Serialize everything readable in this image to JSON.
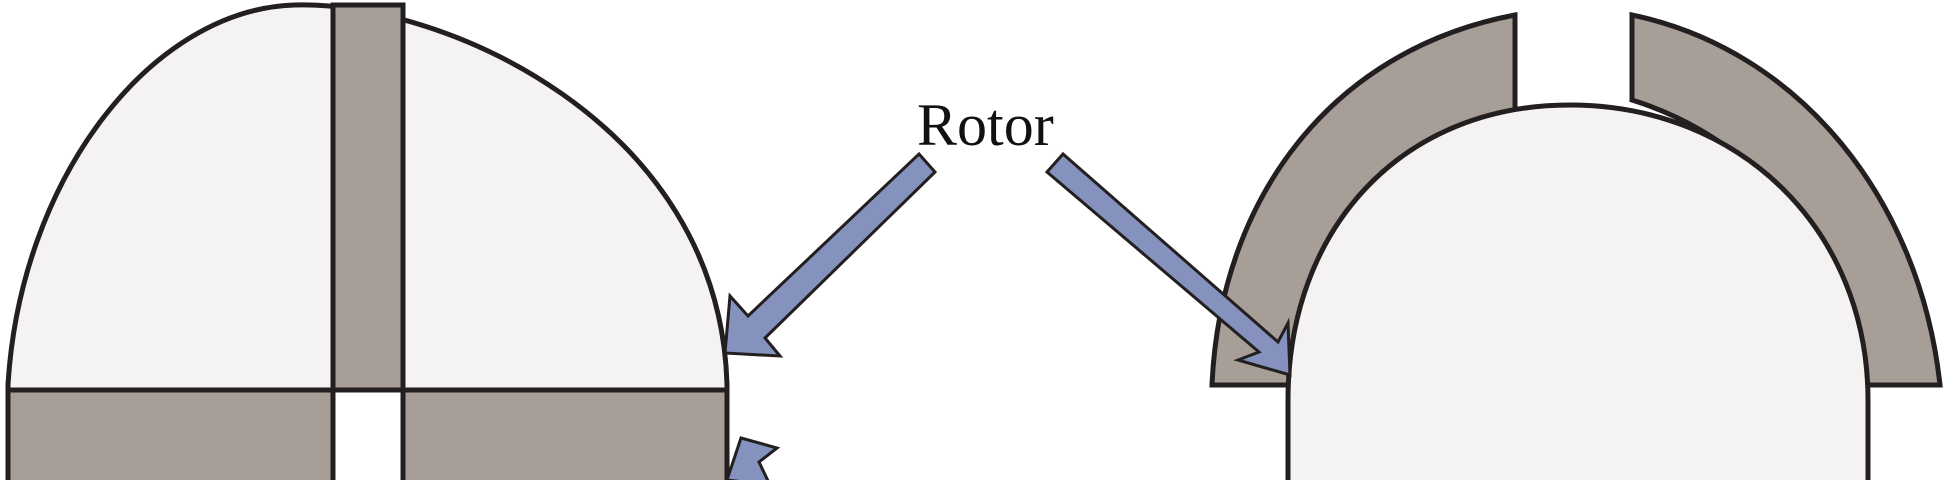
{
  "diagram": {
    "rotor_label": "Rotor",
    "colors": {
      "rotor_fill": "#f5f3f2",
      "stator_fill": "#a79f97",
      "arrow_fill": "#8492bd",
      "outline": "#231f20",
      "slot_fill": "#ffffff"
    }
  }
}
